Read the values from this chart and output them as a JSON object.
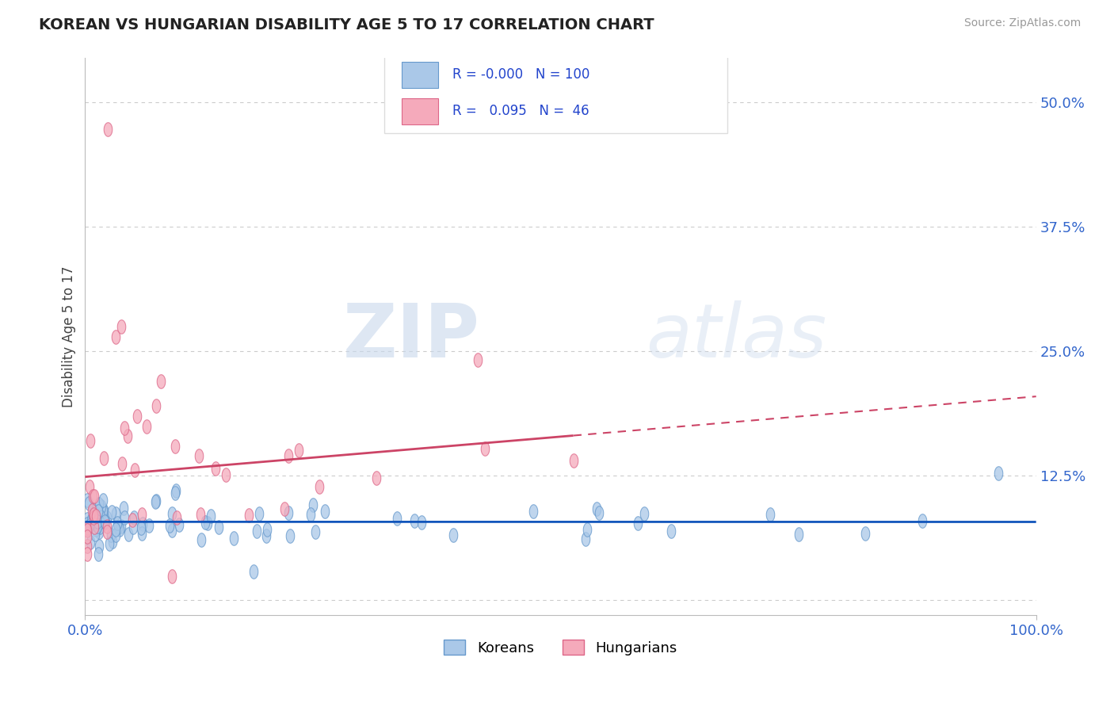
{
  "title": "KOREAN VS HUNGARIAN DISABILITY AGE 5 TO 17 CORRELATION CHART",
  "source_text": "Source: ZipAtlas.com",
  "ylabel": "Disability Age 5 to 17",
  "xlim": [
    0.0,
    1.0
  ],
  "ylim": [
    -0.015,
    0.545
  ],
  "xtick_labels": [
    "0.0%",
    "100.0%"
  ],
  "yticks": [
    0.0,
    0.125,
    0.25,
    0.375,
    0.5
  ],
  "ytick_labels": [
    "",
    "12.5%",
    "25.0%",
    "37.5%",
    "50.0%"
  ],
  "background_color": "#ffffff",
  "grid_color": "#cccccc",
  "korean_color": "#aac8e8",
  "hungarian_color": "#f5aabb",
  "korean_edge_color": "#6699cc",
  "hungarian_edge_color": "#dd6688",
  "trend_korean_color": "#1155bb",
  "trend_hungarian_color": "#cc4466",
  "watermark_zip": "ZIP",
  "watermark_atlas": "atlas",
  "koreans_label": "Koreans",
  "hungarians_label": "Hungarians",
  "legend_korean_r": "-0.000",
  "legend_korean_n": "100",
  "legend_hungarian_r": "0.095",
  "legend_hungarian_n": "46"
}
